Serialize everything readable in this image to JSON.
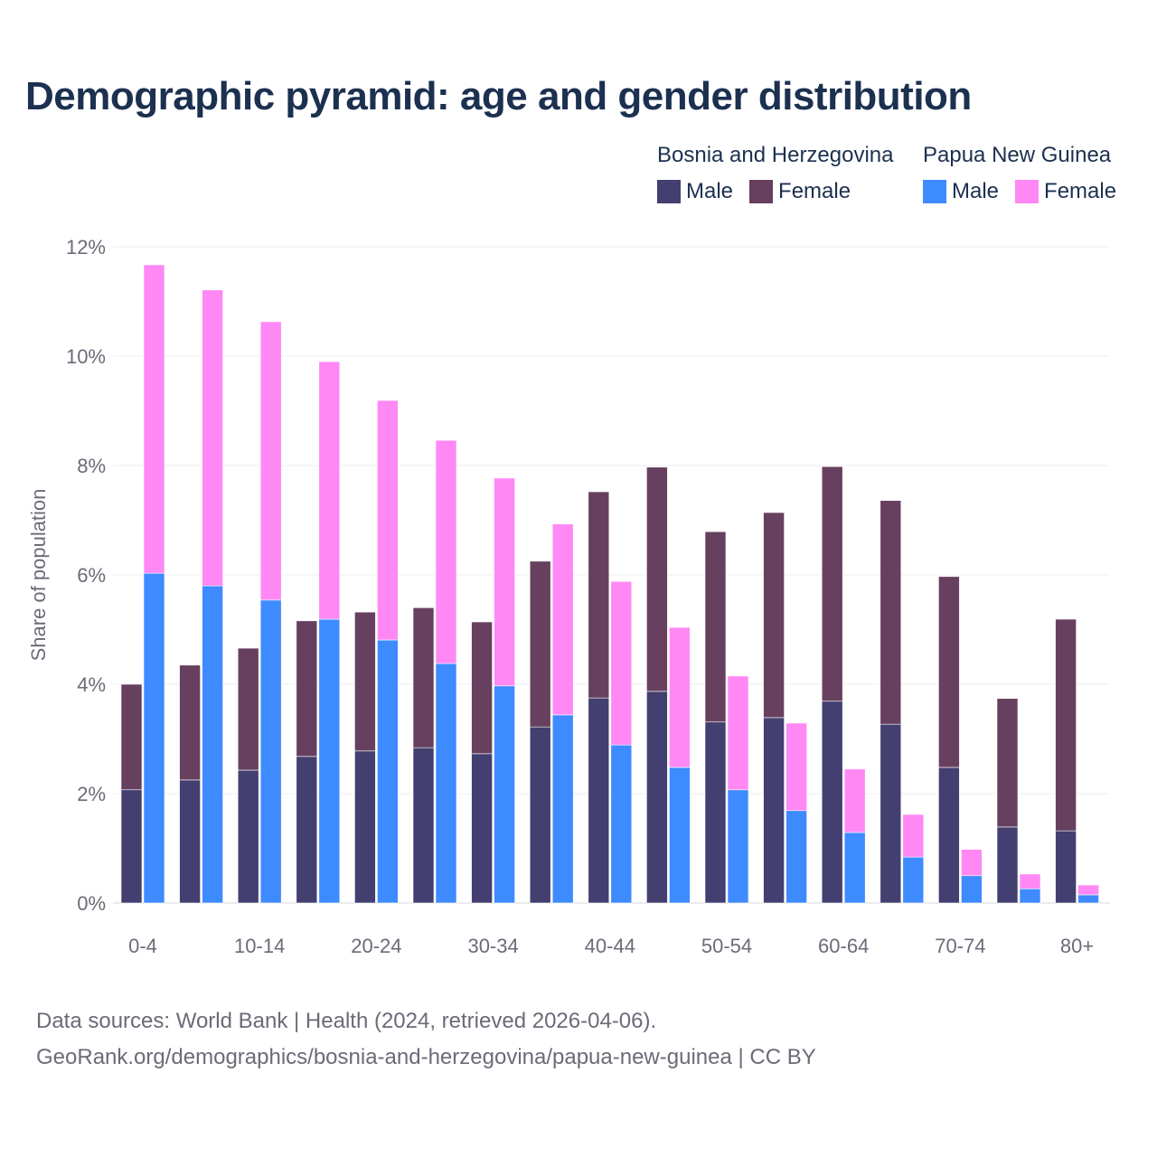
{
  "chart_data": {
    "type": "bar",
    "stacked": true,
    "title": "Demographic pyramid: age and gender distribution",
    "ylabel": "Share of population",
    "xlabel": "",
    "ylim": [
      0,
      12
    ],
    "yticks": [
      0,
      2,
      4,
      6,
      8,
      10,
      12
    ],
    "ytick_labels": [
      "0%",
      "2%",
      "4%",
      "6%",
      "8%",
      "10%",
      "12%"
    ],
    "categories": [
      "0-4",
      "5-9",
      "10-14",
      "15-19",
      "20-24",
      "25-29",
      "30-34",
      "35-39",
      "40-44",
      "45-49",
      "50-54",
      "55-59",
      "60-64",
      "65-69",
      "70-74",
      "75-79",
      "80+"
    ],
    "xtick_labels": [
      "0-4",
      "10-14",
      "20-24",
      "30-34",
      "40-44",
      "50-54",
      "60-64",
      "70-74",
      "80+"
    ],
    "grid": true,
    "legend_placement": "top-right",
    "groups": [
      {
        "name": "Bosnia and Herzegovina",
        "series": [
          {
            "name": "Male",
            "color": "#433f70",
            "values": [
              2.07,
              2.25,
              2.43,
              2.68,
              2.78,
              2.84,
              2.73,
              3.22,
              3.75,
              3.87,
              3.31,
              3.39,
              3.69,
              3.27,
              2.48,
              1.39,
              1.32
            ]
          },
          {
            "name": "Female",
            "color": "#67405f",
            "values": [
              1.93,
              2.1,
              2.23,
              2.48,
              2.54,
              2.56,
              2.41,
              3.03,
              3.77,
              4.1,
              3.48,
              3.75,
              4.29,
              4.09,
              3.49,
              2.35,
              3.87
            ]
          }
        ]
      },
      {
        "name": "Papua New Guinea",
        "series": [
          {
            "name": "Male",
            "color": "#3e8bff",
            "values": [
              6.03,
              5.8,
              5.54,
              5.19,
              4.81,
              4.38,
              3.97,
              3.44,
              2.89,
              2.48,
              2.07,
              1.69,
              1.29,
              0.84,
              0.5,
              0.26,
              0.15
            ]
          },
          {
            "name": "Female",
            "color": "#ff88f5",
            "values": [
              5.64,
              5.41,
              5.09,
              4.71,
              4.38,
              4.08,
              3.8,
              3.49,
              2.99,
              2.56,
              2.08,
              1.6,
              1.16,
              0.78,
              0.48,
              0.27,
              0.18
            ]
          }
        ]
      }
    ]
  },
  "footer": {
    "source": "Data sources: World Bank | Health (2024, retrieved 2026-04-06).",
    "credit": "GeoRank.org/demographics/bosnia-and-herzegovina/papua-new-guinea | CC BY"
  }
}
